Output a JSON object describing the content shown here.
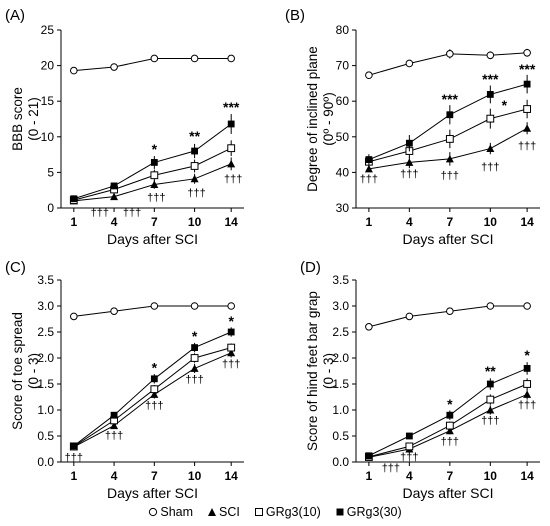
{
  "series_styles": {
    "Sham": {
      "marker": "circle-open"
    },
    "SCI": {
      "marker": "triangle-filled"
    },
    "GRg3(10)": {
      "marker": "square-open"
    },
    "GRg3(30)": {
      "marker": "square-filled"
    }
  },
  "legend": {
    "items": [
      {
        "symbol": "○",
        "label": "Sham"
      },
      {
        "symbol": "▲",
        "label": "SCI"
      },
      {
        "symbol": "□",
        "label": "GRg3(10)"
      },
      {
        "symbol": "■",
        "label": "GRg3(30)"
      }
    ]
  },
  "chart_data": [
    {
      "type": "line",
      "panel_label": "(A)",
      "ylabel": "BBB score",
      "ylabel2": "(0 - 21)",
      "xlabel": "Days after SCI",
      "x": [
        1,
        4,
        7,
        10,
        14
      ],
      "ylim": [
        0,
        25
      ],
      "yticks": [
        0,
        5,
        10,
        15,
        20,
        25
      ],
      "ytick_labels": [
        "0",
        "5",
        "10",
        "15",
        "20",
        "25"
      ],
      "grid": false,
      "series": [
        {
          "name": "Sham",
          "values": [
            19.3,
            19.8,
            21,
            21,
            21
          ],
          "errors": [
            0,
            0.2,
            0.1,
            0.1,
            0.1
          ]
        },
        {
          "name": "SCI",
          "values": [
            1.0,
            1.6,
            3.3,
            4.1,
            6.2
          ],
          "errors": [
            0.2,
            0.3,
            0.6,
            0.7,
            0.9
          ]
        },
        {
          "name": "GRg3(10)",
          "values": [
            1.1,
            2.6,
            4.6,
            5.9,
            8.4
          ],
          "errors": [
            0.2,
            0.4,
            0.8,
            0.9,
            1.1
          ]
        },
        {
          "name": "GRg3(30)",
          "values": [
            1.3,
            3.1,
            6.4,
            8.0,
            11.8
          ],
          "errors": [
            0.2,
            0.4,
            0.9,
            1.0,
            1.4
          ]
        }
      ],
      "annotations": [
        {
          "x": 7,
          "y": 7.6,
          "text": "*"
        },
        {
          "x": 10,
          "y": 9.4,
          "text": "**"
        },
        {
          "x": 14,
          "y": 13.5,
          "text": "***"
        }
      ],
      "daggers": [
        {
          "x": 1,
          "y": -1.1,
          "text": "†††",
          "offset": 26
        },
        {
          "x": 4,
          "y": -1.1,
          "text": "†††",
          "offset": 18
        },
        {
          "x": 7,
          "y": 1.0,
          "text": "†††",
          "offset": 2
        },
        {
          "x": 10,
          "y": 1.6,
          "text": "†††",
          "offset": 2
        },
        {
          "x": 14,
          "y": 3.6,
          "text": "†††",
          "offset": 2
        }
      ]
    },
    {
      "type": "line",
      "panel_label": "(B)",
      "ylabel": "Degree of inclined plane",
      "ylabel2": "(0º - 90º)",
      "xlabel": "Days after SCI",
      "x": [
        1,
        4,
        7,
        10,
        14
      ],
      "ylim": [
        30,
        80
      ],
      "yticks": [
        30,
        40,
        50,
        60,
        70,
        80
      ],
      "ytick_labels": [
        "30",
        "40",
        "50",
        "60",
        "70",
        "80"
      ],
      "grid": false,
      "series": [
        {
          "name": "Sham",
          "values": [
            67.3,
            70.6,
            73.3,
            72.9,
            73.6
          ],
          "errors": [
            0.3,
            1.0,
            1.3,
            1.1,
            1.1
          ]
        },
        {
          "name": "SCI",
          "values": [
            41.0,
            42.8,
            43.8,
            46.7,
            52.4
          ],
          "errors": [
            0.8,
            1.6,
            1.9,
            1.6,
            1.7
          ]
        },
        {
          "name": "GRg3(10)",
          "values": [
            43.0,
            46.0,
            49.4,
            55.1,
            57.8
          ],
          "errors": [
            1.2,
            1.9,
            2.6,
            2.8,
            2.6
          ]
        },
        {
          "name": "GRg3(30)",
          "values": [
            43.6,
            48.2,
            56.2,
            61.9,
            64.8
          ],
          "errors": [
            1.5,
            2.3,
            2.7,
            2.5,
            2.6
          ]
        }
      ],
      "annotations": [
        {
          "x": 7,
          "y": 59.2,
          "text": "***"
        },
        {
          "x": 10,
          "y": 64.8,
          "text": "***"
        },
        {
          "x": 10,
          "y": 57.5,
          "text": "*",
          "offset": 14
        },
        {
          "x": 14,
          "y": 67.6,
          "text": "***"
        }
      ],
      "daggers": [
        {
          "x": 1,
          "y": 37.2,
          "text": "†††",
          "offset": 0
        },
        {
          "x": 4,
          "y": 38.6,
          "text": "†††",
          "offset": 0
        },
        {
          "x": 7,
          "y": 38.2,
          "text": "†††",
          "offset": 0
        },
        {
          "x": 10,
          "y": 40.6,
          "text": "†††",
          "offset": 0
        },
        {
          "x": 14,
          "y": 46.4,
          "text": "†††",
          "offset": 0
        }
      ]
    },
    {
      "type": "line",
      "panel_label": "(C)",
      "ylabel": "Score of toe spread",
      "ylabel2": "(0 - 3)",
      "xlabel": "Days after SCI",
      "x": [
        1,
        4,
        7,
        10,
        14
      ],
      "ylim": [
        0,
        3.5
      ],
      "yticks": [
        0,
        0.5,
        1.0,
        1.5,
        2.0,
        2.5,
        3.0,
        3.5
      ],
      "ytick_labels": [
        "0.0",
        "0.5",
        "1.0",
        "1.5",
        "2.0",
        "2.5",
        "3.0",
        "3.5"
      ],
      "grid": false,
      "series": [
        {
          "name": "Sham",
          "values": [
            2.8,
            2.9,
            3.0,
            3.0,
            3.0
          ],
          "errors": [
            0.05,
            0.03,
            0.0,
            0.0,
            0.0
          ]
        },
        {
          "name": "SCI",
          "values": [
            0.29,
            0.7,
            1.3,
            1.8,
            2.1
          ],
          "errors": [
            0.02,
            0.05,
            0.08,
            0.09,
            0.09
          ]
        },
        {
          "name": "GRg3(10)",
          "values": [
            0.3,
            0.8,
            1.4,
            2.0,
            2.2
          ],
          "errors": [
            0.02,
            0.05,
            0.08,
            0.09,
            0.08
          ]
        },
        {
          "name": "GRg3(30)",
          "values": [
            0.31,
            0.9,
            1.6,
            2.2,
            2.5
          ],
          "errors": [
            0.02,
            0.06,
            0.09,
            0.09,
            0.09
          ]
        }
      ],
      "annotations": [
        {
          "x": 7,
          "y": 1.72,
          "text": "*"
        },
        {
          "x": 10,
          "y": 2.33,
          "text": "*"
        },
        {
          "x": 14,
          "y": 2.62,
          "text": "*"
        }
      ],
      "daggers": [
        {
          "x": 1,
          "y": 0.02,
          "text": "†††",
          "offset": 0
        },
        {
          "x": 4,
          "y": 0.44,
          "text": "†††",
          "offset": 0
        },
        {
          "x": 7,
          "y": 1.02,
          "text": "†††",
          "offset": 0
        },
        {
          "x": 10,
          "y": 1.52,
          "text": "†††",
          "offset": 0
        },
        {
          "x": 14,
          "y": 1.82,
          "text": "†††",
          "offset": 0
        }
      ]
    },
    {
      "type": "line",
      "panel_label": "(D)",
      "ylabel": "Score of hind feet bar grap",
      "ylabel2": "(0 - 3)",
      "xlabel": "Days after SCI",
      "x": [
        1,
        4,
        7,
        10,
        14
      ],
      "ylim": [
        0,
        3.5
      ],
      "yticks": [
        0,
        0.5,
        1.0,
        1.5,
        2.0,
        2.5,
        3.0,
        3.5
      ],
      "ytick_labels": [
        "0.0",
        "0.5",
        "1.0",
        "1.5",
        "2.0",
        "2.5",
        "3.0",
        "3.5"
      ],
      "grid": false,
      "series": [
        {
          "name": "Sham",
          "values": [
            2.6,
            2.8,
            2.9,
            3.0,
            3.0
          ],
          "errors": [
            0.05,
            0.03,
            0.02,
            0.0,
            0.0
          ]
        },
        {
          "name": "SCI",
          "values": [
            0.09,
            0.25,
            0.6,
            1.0,
            1.3
          ],
          "errors": [
            0.02,
            0.04,
            0.07,
            0.09,
            0.1
          ]
        },
        {
          "name": "GRg3(10)",
          "values": [
            0.1,
            0.3,
            0.7,
            1.2,
            1.5
          ],
          "errors": [
            0.02,
            0.05,
            0.08,
            0.1,
            0.11
          ]
        },
        {
          "name": "GRg3(30)",
          "values": [
            0.12,
            0.5,
            0.9,
            1.5,
            1.8
          ],
          "errors": [
            0.02,
            0.06,
            0.09,
            0.11,
            0.12
          ]
        }
      ],
      "annotations": [
        {
          "x": 7,
          "y": 1.02,
          "text": "*"
        },
        {
          "x": 10,
          "y": 1.65,
          "text": "**"
        },
        {
          "x": 14,
          "y": 1.96,
          "text": "*"
        }
      ],
      "daggers": [
        {
          "x": 1,
          "y": -0.18,
          "text": "†††",
          "offset": 22
        },
        {
          "x": 4,
          "y": 0.03,
          "text": "†††",
          "offset": 0
        },
        {
          "x": 7,
          "y": 0.33,
          "text": "†††",
          "offset": 0
        },
        {
          "x": 10,
          "y": 0.73,
          "text": "†††",
          "offset": 0
        },
        {
          "x": 14,
          "y": 1.03,
          "text": "†††",
          "offset": 0
        }
      ]
    }
  ]
}
